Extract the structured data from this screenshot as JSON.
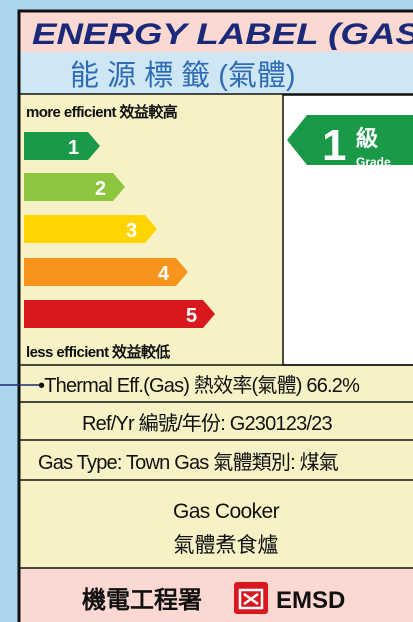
{
  "header": {
    "title": "ENERGY LABEL (GAS)",
    "subtitle": "能 源 標 籤 (氣體)"
  },
  "scale": {
    "top_label": "more efficient 效益較高",
    "grades": [
      "1",
      "2",
      "3",
      "4",
      "5"
    ],
    "bottom_label": "less efficient 效益較低"
  },
  "rating": {
    "grade": "1",
    "grade_zh": "級",
    "grade_en": "Grade"
  },
  "rows": [
    "•Thermal Eff.(Gas) 熱效率(氣體) 66.2%",
    "Ref/Yr 編號/年份: G230123/23",
    "Gas Type: Town Gas 氣體類別: 煤氣"
  ],
  "product": [
    "Gas Cooker",
    "氣體煮食爐"
  ],
  "footer": {
    "agency_zh": "機電工程署",
    "agency_en": "EMSD"
  }
}
